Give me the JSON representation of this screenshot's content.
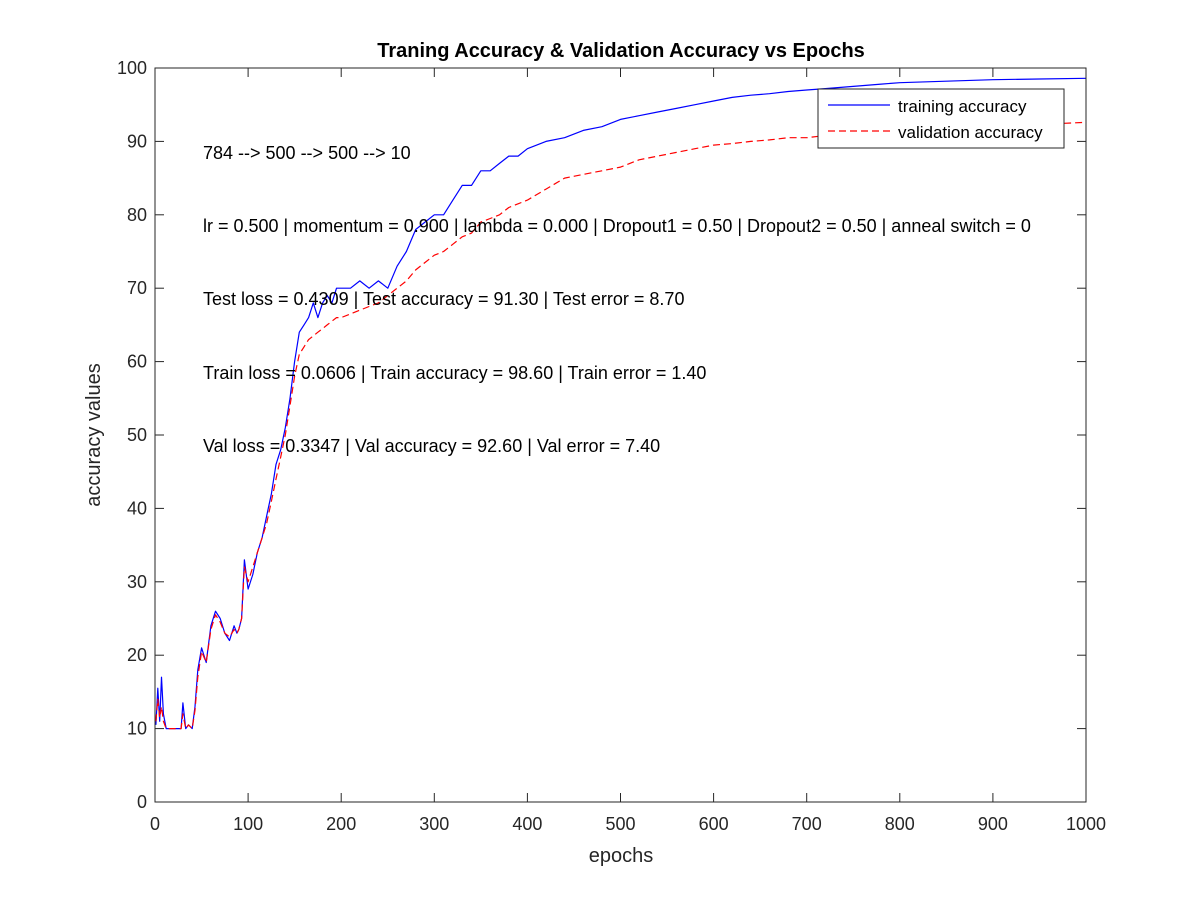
{
  "chart_data": {
    "type": "line",
    "title": "Traning Accuracy & Validation Accuracy vs Epochs",
    "xlabel": "epochs",
    "ylabel": "accuracy values",
    "xlim": [
      0,
      1000
    ],
    "ylim": [
      0,
      100
    ],
    "xticks": [
      0,
      100,
      200,
      300,
      400,
      500,
      600,
      700,
      800,
      900,
      1000
    ],
    "yticks": [
      0,
      10,
      20,
      30,
      40,
      50,
      60,
      70,
      80,
      90,
      100
    ],
    "grid": false,
    "legend_position": "top-right",
    "annotations": [
      "784 --> 500 --> 500 --> 10",
      "lr = 0.500 | momentum = 0.900 | lambda = 0.000 | Dropout1 = 0.50 | Dropout2 = 0.50 | anneal switch = 0",
      "Test loss = 0.4309 | Test accuracy = 91.30 | Test error = 8.70",
      "Train loss = 0.0606 | Train accuracy = 98.60 | Train error = 1.40",
      "Val loss = 0.3347 | Val accuracy = 92.60 | Val error = 7.40"
    ],
    "series": [
      {
        "name": "training accuracy",
        "color": "#0000ff",
        "style": "solid",
        "x": [
          1,
          3,
          5,
          7,
          9,
          12,
          15,
          20,
          25,
          28,
          30,
          33,
          36,
          40,
          43,
          46,
          50,
          55,
          60,
          65,
          70,
          75,
          80,
          85,
          88,
          90,
          93,
          96,
          100,
          105,
          110,
          115,
          120,
          125,
          130,
          135,
          140,
          145,
          150,
          155,
          160,
          165,
          170,
          175,
          180,
          185,
          190,
          195,
          200,
          210,
          220,
          230,
          240,
          250,
          260,
          270,
          280,
          290,
          300,
          310,
          320,
          330,
          340,
          350,
          360,
          370,
          380,
          390,
          400,
          420,
          440,
          460,
          480,
          500,
          520,
          540,
          560,
          580,
          600,
          620,
          640,
          660,
          680,
          700,
          720,
          740,
          760,
          780,
          800,
          850,
          900,
          950,
          1000
        ],
        "y": [
          10.5,
          15.5,
          11,
          17,
          12,
          10,
          10,
          10,
          10,
          10,
          13.5,
          10,
          10.5,
          10,
          13,
          18,
          21,
          19,
          24,
          26,
          25,
          23,
          22,
          24,
          23,
          23.5,
          25,
          33,
          29,
          31,
          34,
          36,
          39,
          42,
          46,
          48,
          51,
          55,
          60,
          64,
          65,
          66,
          68,
          66,
          68,
          69,
          68,
          70,
          70,
          70,
          71,
          70,
          71,
          70,
          73,
          75,
          78,
          79,
          80,
          80,
          82,
          84,
          84,
          86,
          86,
          87,
          88,
          88,
          89,
          90,
          90.5,
          91.5,
          92,
          93,
          93.5,
          94,
          94.5,
          95,
          95.5,
          96,
          96.3,
          96.5,
          96.8,
          97,
          97.2,
          97.4,
          97.6,
          97.8,
          98,
          98.2,
          98.4,
          98.5,
          98.6
        ]
      },
      {
        "name": "validation accuracy",
        "color": "#ff0000",
        "style": "dashed",
        "x": [
          1,
          3,
          5,
          7,
          9,
          12,
          15,
          20,
          25,
          28,
          30,
          33,
          36,
          40,
          43,
          46,
          50,
          55,
          60,
          65,
          70,
          75,
          80,
          85,
          88,
          90,
          93,
          96,
          100,
          105,
          110,
          115,
          120,
          125,
          130,
          135,
          140,
          145,
          150,
          155,
          160,
          165,
          170,
          175,
          180,
          185,
          190,
          195,
          200,
          210,
          220,
          230,
          240,
          250,
          260,
          270,
          280,
          290,
          300,
          310,
          320,
          330,
          340,
          350,
          360,
          370,
          380,
          390,
          400,
          420,
          440,
          460,
          480,
          500,
          520,
          540,
          560,
          580,
          600,
          620,
          640,
          660,
          680,
          700,
          720,
          740,
          760,
          780,
          800,
          850,
          900,
          950,
          1000
        ],
        "y": [
          11,
          14,
          11.5,
          13,
          11,
          10,
          10,
          10,
          10,
          10,
          12,
          10,
          10.5,
          10,
          12.5,
          17,
          20.5,
          19,
          23.5,
          25.5,
          24.5,
          23,
          22.5,
          23.5,
          23,
          23.5,
          25,
          32,
          30,
          32,
          34,
          36,
          38,
          41,
          44,
          47,
          50,
          54,
          58,
          61,
          62,
          63,
          63.5,
          64,
          64.5,
          65,
          65.5,
          66,
          66,
          66.5,
          67,
          67.5,
          68,
          69,
          70,
          71,
          72.5,
          73.5,
          74.5,
          75,
          76,
          77,
          77.5,
          79,
          79.5,
          80,
          81,
          81.5,
          82,
          83.5,
          85,
          85.5,
          86,
          86.5,
          87.5,
          88,
          88.5,
          89,
          89.5,
          89.7,
          90,
          90.2,
          90.5,
          90.5,
          90.8,
          91,
          91.2,
          91.3,
          91.3,
          91.6,
          91.8,
          92.3,
          92.6
        ]
      }
    ]
  }
}
